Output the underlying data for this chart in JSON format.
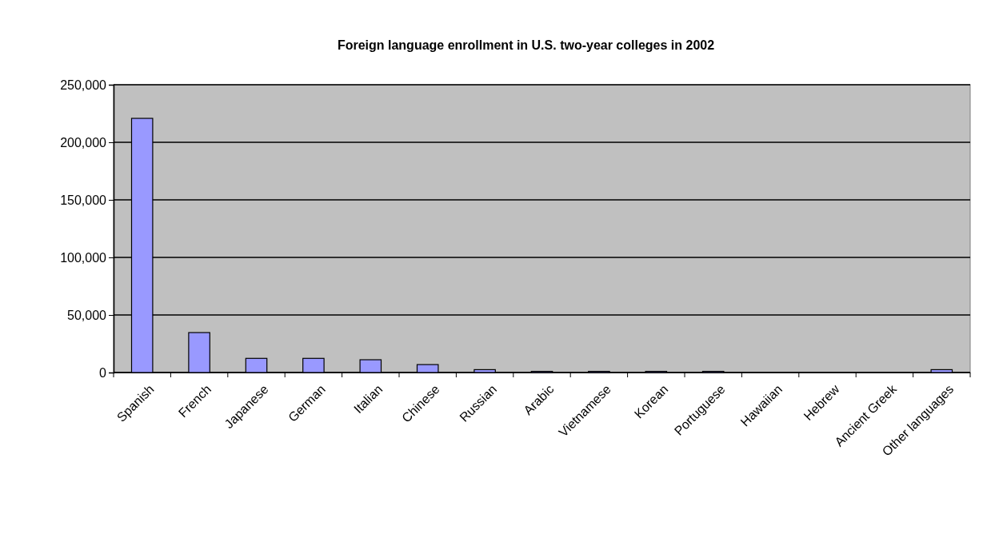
{
  "chart_data": {
    "type": "bar",
    "title": "Foreign language enrollment in U.S. two-year colleges in 2002",
    "categories": [
      "Spanish",
      "French",
      "Japanese",
      "German",
      "Italian",
      "Chinese",
      "Russian",
      "Arabic",
      "Vietnamese",
      "Korean",
      "Portuguese",
      "Hawaiian",
      "Hebrew",
      "Ancient Greek",
      "Other languages"
    ],
    "values": [
      220800,
      34700,
      12300,
      12300,
      11100,
      6900,
      2500,
      1000,
      1000,
      1000,
      1000,
      0,
      0,
      0,
      2500
    ],
    "color": "#9999ff",
    "ylim": [
      0,
      250000
    ],
    "yticks": [
      {
        "value": 0,
        "label": "0"
      },
      {
        "value": 50000,
        "label": "50,000"
      },
      {
        "value": 100000,
        "label": "100,000"
      },
      {
        "value": 150000,
        "label": "150,000"
      },
      {
        "value": 200000,
        "label": "200,000"
      },
      {
        "value": 250000,
        "label": "250,000"
      }
    ],
    "grid": "y"
  }
}
